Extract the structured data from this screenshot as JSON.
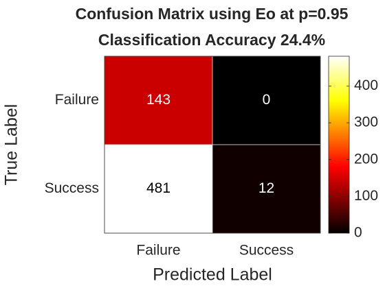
{
  "chart_data": {
    "type": "heatmap",
    "title": "Confusion Matrix using Eo at p=0.95",
    "subtitle": "Classification Accuracy 24.4%",
    "x_label": "Predicted Label",
    "y_label": "True Label",
    "x_categories": [
      "Failure",
      "Success"
    ],
    "y_categories": [
      "Failure",
      "Success"
    ],
    "values": [
      [
        143,
        0
      ],
      [
        481,
        12
      ]
    ],
    "colormap": "hot",
    "clim": [
      0,
      481
    ],
    "cticks": [
      0,
      100,
      200,
      300,
      400
    ]
  }
}
